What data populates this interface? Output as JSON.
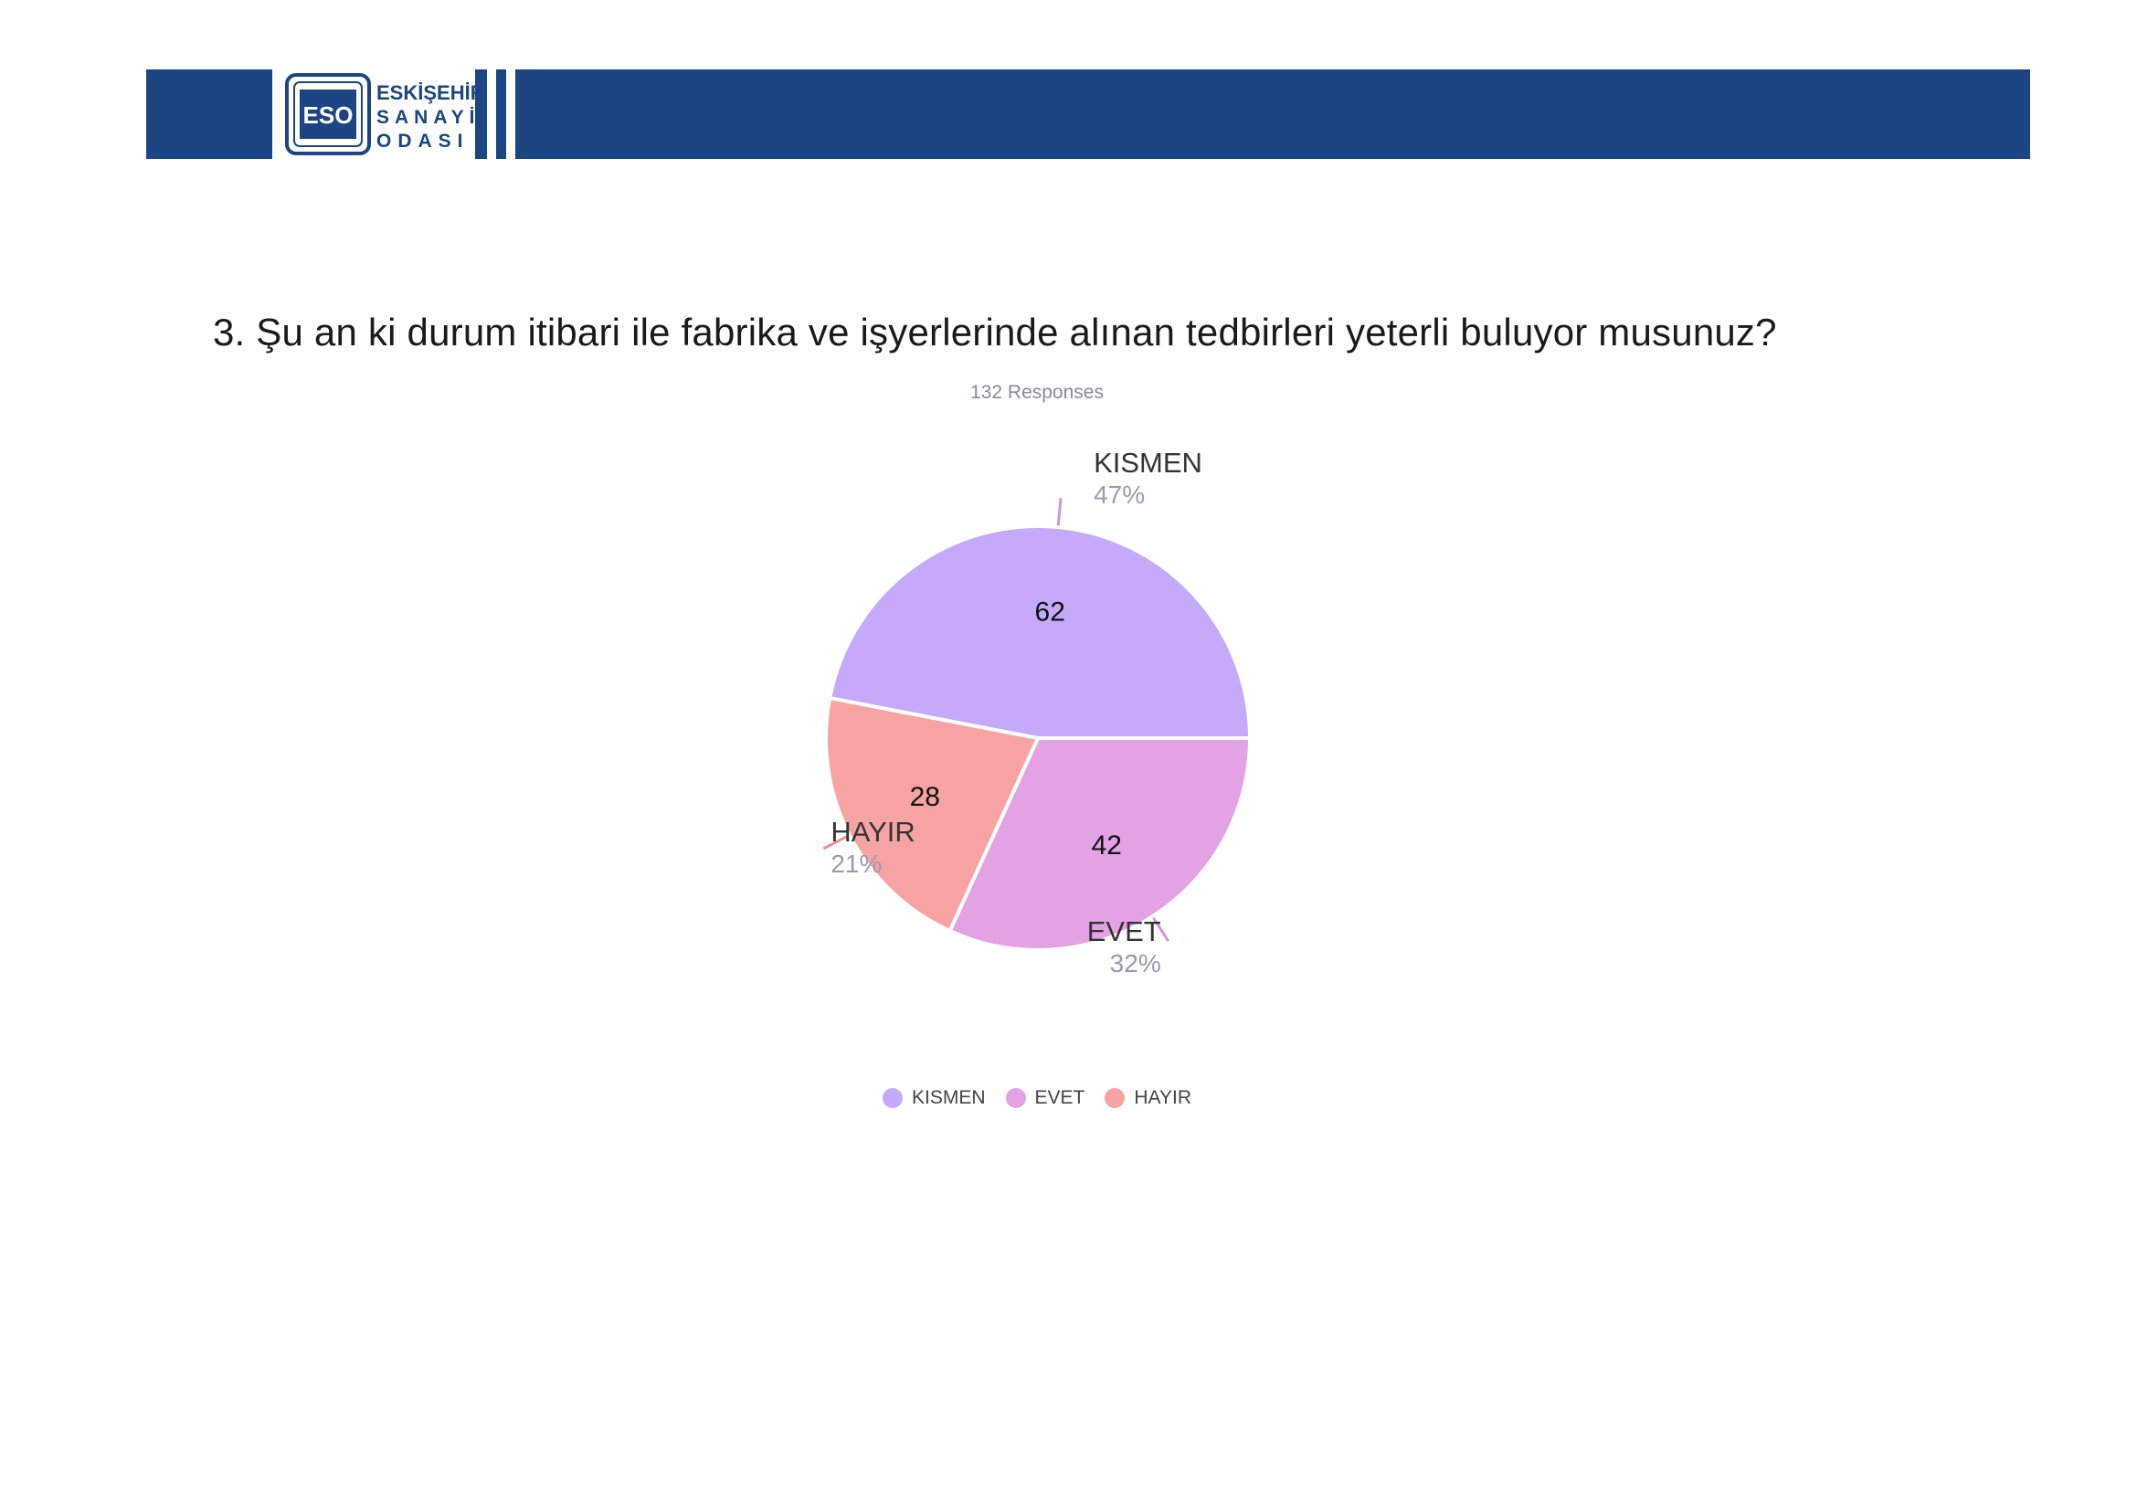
{
  "header": {
    "logo": {
      "abbr": "ESO",
      "line1": "ESKİŞEHİR",
      "line2": "SANAYİ",
      "line3": "ODASI"
    },
    "band_color": "#1b4583"
  },
  "question": "3. Şu an ki durum itibari ile fabrika ve işyerlerinde alınan tedbirleri yeterli buluyor musunuz?",
  "responses_label": "132 Responses",
  "chart_data": {
    "type": "pie",
    "total": 132,
    "slices": [
      {
        "label": "KISMEN",
        "value": 62,
        "percent": "47%",
        "color": "#c5a9fb",
        "line_color": "#b89cf2"
      },
      {
        "label": "EVET",
        "value": 42,
        "percent": "32%",
        "color": "#e2a2e3",
        "line_color": "#d991df"
      },
      {
        "label": "HAYIR",
        "value": 28,
        "percent": "21%",
        "color": "#f8a3a3",
        "line_color": "#f28e9c"
      }
    ],
    "legend_position": "bottom"
  }
}
